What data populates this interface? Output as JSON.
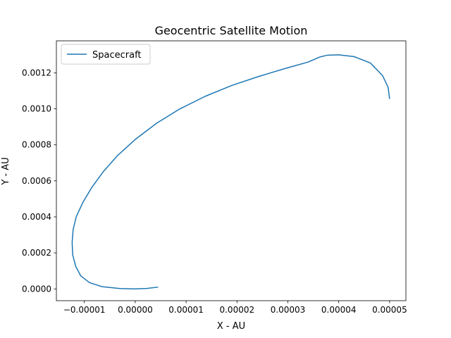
{
  "chart_data": {
    "type": "line",
    "title": "Geocentric Satellite Motion",
    "xlabel": "X - AU",
    "ylabel": "Y - AU",
    "xlim": [
      -1.55e-05,
      5.32e-05
    ],
    "ylim": [
      -6.55e-05,
      0.0013775
    ],
    "grid": false,
    "legend_position": "top-left",
    "x_ticks": [
      {
        "value": -1e-05,
        "label": "−0.00001"
      },
      {
        "value": 0.0,
        "label": "0.00000"
      },
      {
        "value": 1e-05,
        "label": "0.00001"
      },
      {
        "value": 2e-05,
        "label": "0.00002"
      },
      {
        "value": 3e-05,
        "label": "0.00003"
      },
      {
        "value": 4e-05,
        "label": "0.00004"
      },
      {
        "value": 5e-05,
        "label": "0.00005"
      }
    ],
    "y_ticks": [
      {
        "value": 0.0,
        "label": "0.0000"
      },
      {
        "value": 0.0002,
        "label": "0.0002"
      },
      {
        "value": 0.0004,
        "label": "0.0004"
      },
      {
        "value": 0.0006,
        "label": "0.0006"
      },
      {
        "value": 0.0008,
        "label": "0.0008"
      },
      {
        "value": 0.001,
        "label": "0.0010"
      },
      {
        "value": 0.0012,
        "label": "0.0012"
      }
    ],
    "series": [
      {
        "name": "Spacecraft",
        "color": "#1f77b4",
        "x": [
          4.5e-06,
          2.3e-06,
          0.0,
          -3e-06,
          -6.5e-06,
          -9e-06,
          -1.07e-05,
          -1.17e-05,
          -1.23e-05,
          -1.24e-05,
          -1.22e-05,
          -1.16e-05,
          -1.03e-05,
          -8.5e-06,
          -6.3e-06,
          -3.5e-06,
          0.0,
          4.2e-06,
          8.8e-06,
          1.38e-05,
          1.9e-05,
          2.43e-05,
          2.96e-05,
          3.4e-05,
          3.63e-05,
          3.78e-05,
          4e-05,
          4.3e-05,
          4.62e-05,
          4.86e-05,
          4.97e-05,
          5e-05
        ],
        "y": [
          1e-05,
          2.5e-06,
          0.0,
          2e-06,
          1.2e-05,
          3.5e-05,
          7.2e-05,
          0.000125,
          0.00019,
          0.00026,
          0.00033,
          0.0004,
          0.00048,
          0.000565,
          0.00065,
          0.00074,
          0.00083,
          0.00092,
          0.001,
          0.00107,
          0.00113,
          0.00118,
          0.001225,
          0.00126,
          0.001288,
          0.001298,
          0.0013,
          0.00129,
          0.001255,
          0.001185,
          0.00112,
          0.001055
        ]
      }
    ]
  }
}
